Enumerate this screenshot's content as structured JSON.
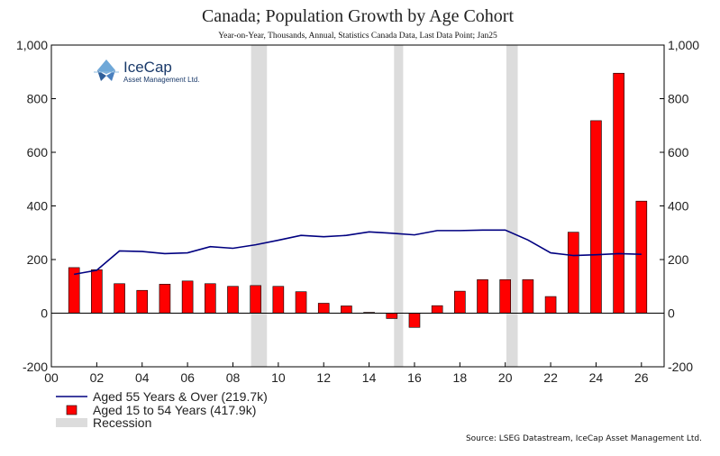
{
  "chart_data": {
    "type": "bar",
    "title": "Canada; Population Growth by Age Cohort",
    "subtitle": "Year-on-Year, Thousands, Annual, Statistics Canada Data, Last Data Point; Jan25",
    "ylim": [
      -200,
      1000
    ],
    "yticks": [
      -200,
      0,
      200,
      400,
      600,
      800,
      1000
    ],
    "ytick_labels": [
      "-200",
      "0",
      "200",
      "400",
      "600",
      "800",
      "1,000"
    ],
    "xlim": [
      0,
      27
    ],
    "xticks": [
      0,
      2,
      4,
      6,
      8,
      10,
      12,
      14,
      16,
      18,
      20,
      22,
      24,
      26
    ],
    "xtick_labels": [
      "00",
      "02",
      "04",
      "06",
      "08",
      "10",
      "12",
      "14",
      "16",
      "18",
      "20",
      "22",
      "24",
      "26"
    ],
    "recessions": [
      [
        8.8,
        9.5
      ],
      [
        15.1,
        15.5
      ],
      [
        20.05,
        20.55
      ]
    ],
    "series": [
      {
        "name": "Aged 55 Years & Over (219.7k)",
        "type": "line",
        "color": "#000080",
        "x": [
          1,
          2,
          3,
          4,
          5,
          6,
          7,
          8,
          9,
          10,
          11,
          12,
          13,
          14,
          15,
          16,
          17,
          18,
          19,
          20,
          21,
          22,
          23,
          24,
          25,
          26
        ],
        "values": [
          145,
          160,
          232,
          230,
          222,
          225,
          248,
          242,
          255,
          272,
          290,
          285,
          290,
          303,
          298,
          292,
          308,
          308,
          310,
          310,
          273,
          225,
          215,
          218,
          222,
          219.7
        ]
      },
      {
        "name": "Aged 15 to 54 Years (417.9k)",
        "type": "bar",
        "color": "#ff0000",
        "x": [
          1,
          2,
          3,
          4,
          5,
          6,
          7,
          8,
          9,
          10,
          11,
          12,
          13,
          14,
          15,
          16,
          17,
          18,
          19,
          20,
          21,
          22,
          23,
          24,
          25,
          26
        ],
        "values": [
          170,
          162,
          110,
          85,
          108,
          120,
          110,
          100,
          103,
          100,
          80,
          37,
          27,
          3,
          -20,
          -53,
          28,
          82,
          125,
          125,
          125,
          62,
          302,
          718,
          895,
          417.9
        ]
      }
    ],
    "legend": {
      "line_label": "Aged 55 Years & Over (219.7k)",
      "bar_label": "Aged 15 to 54 Years (417.9k)",
      "recession_label": "Recession"
    },
    "colors": {
      "bar": "#ff0000",
      "bar_edge": "#000000",
      "line": "#000080",
      "recession": "#dcdcdc",
      "axis": "#000000"
    }
  },
  "logo": {
    "name": "IceCap",
    "tagline": "Asset Management Ltd."
  },
  "source": "Source: LSEG Datastream, IceCap Asset Management Ltd."
}
